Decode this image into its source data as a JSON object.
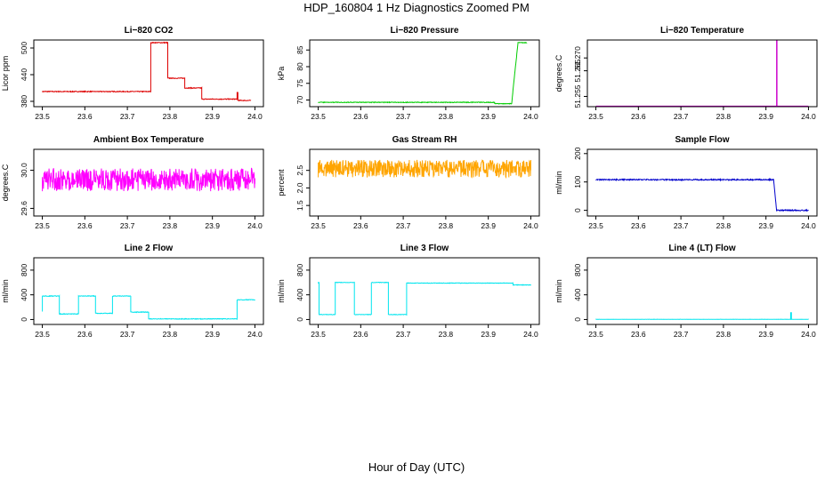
{
  "page": {
    "title": "HDP_160804  1 Hz Diagnostics Zoomed PM",
    "xlabel": "Hour of Day (UTC)"
  },
  "chart_data": [
    {
      "id": "co2",
      "type": "line",
      "title": "Li−820 CO2",
      "ylabel": "Licor ppm",
      "color": "#dd0000",
      "noise": 0.9,
      "xlim": [
        23.48,
        24.02
      ],
      "ylim": [
        368,
        518
      ],
      "xticks": [
        "23.5",
        "23.6",
        "23.7",
        "23.8",
        "23.9",
        "24.0"
      ],
      "yticks": [
        380,
        440,
        500
      ],
      "series": [
        {
          "x": [
            23.5,
            23.755,
            23.755,
            23.795,
            23.795,
            23.835,
            23.835,
            23.875,
            23.875,
            23.958,
            23.958,
            23.96,
            23.96,
            23.99
          ],
          "y": [
            402,
            402,
            512,
            512,
            432,
            432,
            410,
            410,
            385,
            385,
            400,
            400,
            382,
            382
          ]
        }
      ]
    },
    {
      "id": "pressure",
      "type": "line",
      "title": "Li−820 Pressure",
      "ylabel": "kPa",
      "color": "#00cc00",
      "noise": 0.1,
      "xlim": [
        23.48,
        24.02
      ],
      "ylim": [
        68,
        88
      ],
      "xticks": [
        "23.5",
        "23.6",
        "23.7",
        "23.8",
        "23.9",
        "24.0"
      ],
      "yticks": [
        70,
        75,
        80,
        85
      ],
      "series": [
        {
          "x": [
            23.5,
            23.915,
            23.915,
            23.955,
            23.963,
            23.97,
            23.99
          ],
          "y": [
            69.3,
            69.3,
            68.9,
            68.9,
            79,
            87.2,
            87.2
          ]
        }
      ]
    },
    {
      "id": "li820-temp",
      "type": "line",
      "title": "Li−820 Temperature",
      "ylabel": "degrees.C",
      "color": "#cc00cc",
      "noise": 0,
      "xlim": [
        23.48,
        24.02
      ],
      "ylim": [
        51.251,
        51.277
      ],
      "xticks": [
        "23.5",
        "23.6",
        "23.7",
        "23.8",
        "23.9",
        "24.0"
      ],
      "yticks": [
        51.255,
        51.265,
        51.27
      ],
      "series": [
        {
          "x": [
            23.5,
            23.925,
            23.925,
            23.926,
            23.926,
            24.0
          ],
          "y": [
            51.2512,
            51.2512,
            51.277,
            51.277,
            51.2512,
            51.2512
          ]
        }
      ]
    },
    {
      "id": "ambient-box-temp",
      "type": "line",
      "title": "Ambient Box Temperature",
      "ylabel": "degrees.C",
      "color": "#ff00ff",
      "noise": 0.12,
      "xlim": [
        23.48,
        24.02
      ],
      "ylim": [
        29.52,
        30.22
      ],
      "xticks": [
        "23.5",
        "23.6",
        "23.7",
        "23.8",
        "23.9",
        "24.0"
      ],
      "yticks": [
        29.6,
        30.0
      ],
      "series": [
        {
          "x": [
            23.5,
            24.0
          ],
          "y": [
            29.9,
            29.9
          ]
        }
      ]
    },
    {
      "id": "gas-stream-rh",
      "type": "line",
      "title": "Gas Stream RH",
      "ylabel": "percent",
      "color": "#ffa500",
      "noise": 0.25,
      "xlim": [
        23.48,
        24.02
      ],
      "ylim": [
        1.2,
        3.1
      ],
      "xticks": [
        "23.5",
        "23.6",
        "23.7",
        "23.8",
        "23.9",
        "24.0"
      ],
      "yticks": [
        1.5,
        2.0,
        2.5
      ],
      "series": [
        {
          "x": [
            23.5,
            24.0
          ],
          "y": [
            2.55,
            2.55
          ]
        }
      ]
    },
    {
      "id": "sample-flow",
      "type": "line",
      "title": "Sample Flow",
      "ylabel": "ml/min",
      "color": "#0000cc",
      "noise": 2,
      "xlim": [
        23.48,
        24.02
      ],
      "ylim": [
        -20,
        215
      ],
      "xticks": [
        "23.5",
        "23.6",
        "23.7",
        "23.8",
        "23.9",
        "24.0"
      ],
      "yticks": [
        0,
        100,
        200
      ],
      "series": [
        {
          "x": [
            23.5,
            23.918,
            23.925,
            24.0
          ],
          "y": [
            108,
            108,
            0,
            0
          ]
        }
      ]
    },
    {
      "id": "line2-flow",
      "type": "line",
      "title": "Line 2 Flow",
      "ylabel": "ml/min",
      "color": "#00e5ee",
      "noise": 5,
      "xlim": [
        23.48,
        24.02
      ],
      "ylim": [
        -80,
        1000
      ],
      "xticks": [
        "23.5",
        "23.6",
        "23.7",
        "23.8",
        "23.9",
        "24.0"
      ],
      "yticks": [
        0,
        400,
        800
      ],
      "series": [
        {
          "x": [
            23.5,
            23.5,
            23.54,
            23.54,
            23.585,
            23.585,
            23.625,
            23.625,
            23.665,
            23.665,
            23.708,
            23.708,
            23.75,
            23.75,
            23.958,
            23.958,
            24.0
          ],
          "y": [
            130,
            380,
            380,
            90,
            90,
            380,
            380,
            100,
            100,
            380,
            380,
            120,
            120,
            10,
            10,
            320,
            320
          ]
        }
      ]
    },
    {
      "id": "line3-flow",
      "type": "line",
      "title": "Line 3 Flow",
      "ylabel": "ml/min",
      "color": "#00e5ee",
      "noise": 4,
      "xlim": [
        23.48,
        24.02
      ],
      "ylim": [
        -80,
        1000
      ],
      "xticks": [
        "23.5",
        "23.6",
        "23.7",
        "23.8",
        "23.9",
        "24.0"
      ],
      "yticks": [
        0,
        400,
        800
      ],
      "series": [
        {
          "x": [
            23.5,
            23.5,
            23.502,
            23.502,
            23.54,
            23.54,
            23.585,
            23.585,
            23.625,
            23.625,
            23.665,
            23.665,
            23.708,
            23.708,
            23.958,
            23.958,
            24.0
          ],
          "y": [
            600,
            600,
            600,
            80,
            80,
            600,
            600,
            80,
            80,
            600,
            600,
            80,
            80,
            590,
            590,
            560,
            560
          ]
        }
      ]
    },
    {
      "id": "line4-flow",
      "type": "line",
      "title": "Line 4 (LT) Flow",
      "ylabel": "ml/min",
      "color": "#00e5ee",
      "noise": 1.5,
      "xlim": [
        23.48,
        24.02
      ],
      "ylim": [
        -80,
        1000
      ],
      "xticks": [
        "23.5",
        "23.6",
        "23.7",
        "23.8",
        "23.9",
        "24.0"
      ],
      "yticks": [
        0,
        400,
        800
      ],
      "series": [
        {
          "x": [
            23.5,
            23.958,
            23.958,
            23.96,
            23.96,
            24.0
          ],
          "y": [
            3,
            3,
            110,
            110,
            3,
            3
          ]
        }
      ]
    }
  ]
}
